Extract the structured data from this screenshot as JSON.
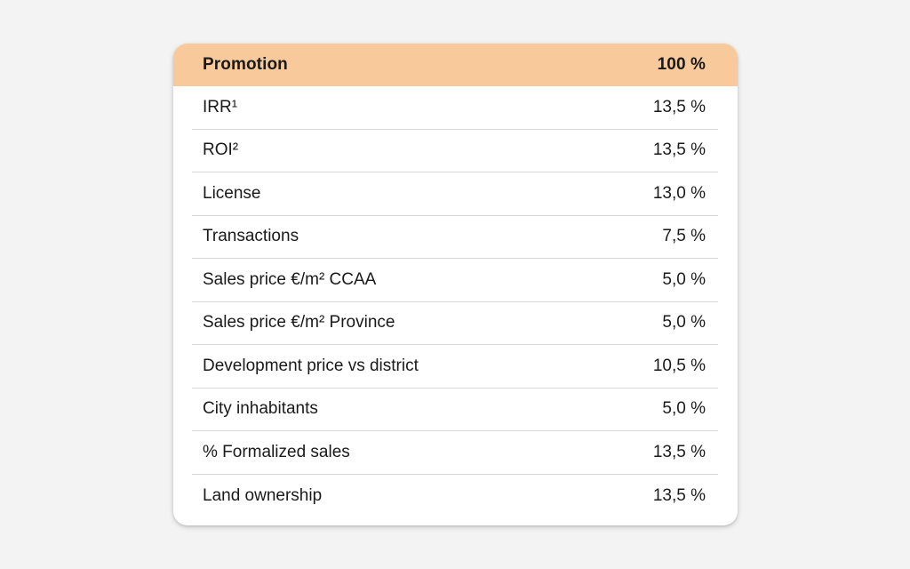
{
  "table": {
    "header": {
      "label": "Promotion",
      "value": "100 %"
    },
    "rows": [
      {
        "label": "IRR¹",
        "value": "13,5 %"
      },
      {
        "label": "ROI²",
        "value": "13,5 %"
      },
      {
        "label": "License",
        "value": "13,0 %"
      },
      {
        "label": "Transactions",
        "value": "7,5 %"
      },
      {
        "label": "Sales price €/m² CCAA",
        "value": "5,0 %"
      },
      {
        "label": "Sales price €/m² Province",
        "value": "5,0 %"
      },
      {
        "label": "Development price vs district",
        "value": "10,5 %"
      },
      {
        "label": "City inhabitants",
        "value": "5,0 %"
      },
      {
        "label": "% Formalized sales",
        "value": "13,5 %"
      },
      {
        "label": "Land ownership",
        "value": "13,5 %"
      }
    ]
  },
  "colors": {
    "header_bg": "#f8c99a",
    "page_bg": "#f3f3f3",
    "card_bg": "#ffffff",
    "divider": "#d9d9d9"
  }
}
